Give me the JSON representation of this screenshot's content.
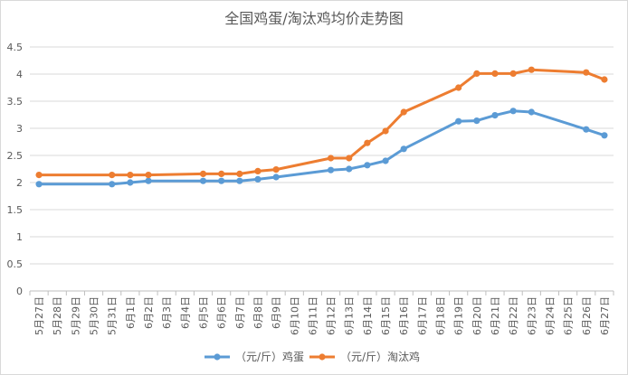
{
  "chart_data": {
    "type": "line",
    "title": "全国鸡蛋/淘汰鸡均价走势图",
    "xlabel": "",
    "ylabel": "",
    "ylim": [
      0,
      4.5
    ],
    "yticks": [
      "0",
      "0.5",
      "1",
      "1.5",
      "2",
      "2.5",
      "3",
      "3.5",
      "4",
      "4.5"
    ],
    "categories": [
      "5月27日",
      "5月28日",
      "5月29日",
      "5月30日",
      "5月31日",
      "6月1日",
      "6月2日",
      "6月3日",
      "6月4日",
      "6月5日",
      "6月6日",
      "6月7日",
      "6月8日",
      "6月9日",
      "6月10日",
      "6月11日",
      "6月12日",
      "6月13日",
      "6月14日",
      "6月15日",
      "6月16日",
      "6月17日",
      "6月18日",
      "6月19日",
      "6月20日",
      "6月21日",
      "6月22日",
      "6月23日",
      "6月24日",
      "6月25日",
      "6月26日",
      "6月27日"
    ],
    "grid": true,
    "legend_position": "bottom",
    "series": [
      {
        "name": "（元/斤）鸡蛋",
        "color": "#5b9bd5",
        "points": [
          [
            0,
            1.97
          ],
          [
            4,
            1.97
          ],
          [
            5,
            2.0
          ],
          [
            6,
            2.03
          ],
          [
            9,
            2.03
          ],
          [
            10,
            2.03
          ],
          [
            11,
            2.03
          ],
          [
            12,
            2.06
          ],
          [
            13,
            2.1
          ],
          [
            16,
            2.23
          ],
          [
            17,
            2.25
          ],
          [
            18,
            2.32
          ],
          [
            19,
            2.4
          ],
          [
            20,
            2.62
          ],
          [
            23,
            3.13
          ],
          [
            24,
            3.14
          ],
          [
            25,
            3.24
          ],
          [
            26,
            3.32
          ],
          [
            27,
            3.3
          ],
          [
            30,
            2.98
          ],
          [
            31,
            2.87
          ]
        ]
      },
      {
        "name": "（元/斤）淘汰鸡",
        "color": "#ed7d31",
        "points": [
          [
            0,
            2.14
          ],
          [
            4,
            2.14
          ],
          [
            5,
            2.14
          ],
          [
            6,
            2.14
          ],
          [
            9,
            2.16
          ],
          [
            10,
            2.16
          ],
          [
            11,
            2.16
          ],
          [
            12,
            2.21
          ],
          [
            13,
            2.24
          ],
          [
            16,
            2.45
          ],
          [
            17,
            2.45
          ],
          [
            18,
            2.73
          ],
          [
            19,
            2.95
          ],
          [
            20,
            3.3
          ],
          [
            23,
            3.75
          ],
          [
            24,
            4.01
          ],
          [
            25,
            4.01
          ],
          [
            26,
            4.01
          ],
          [
            27,
            4.08
          ],
          [
            30,
            4.03
          ],
          [
            31,
            3.9
          ]
        ]
      }
    ]
  }
}
